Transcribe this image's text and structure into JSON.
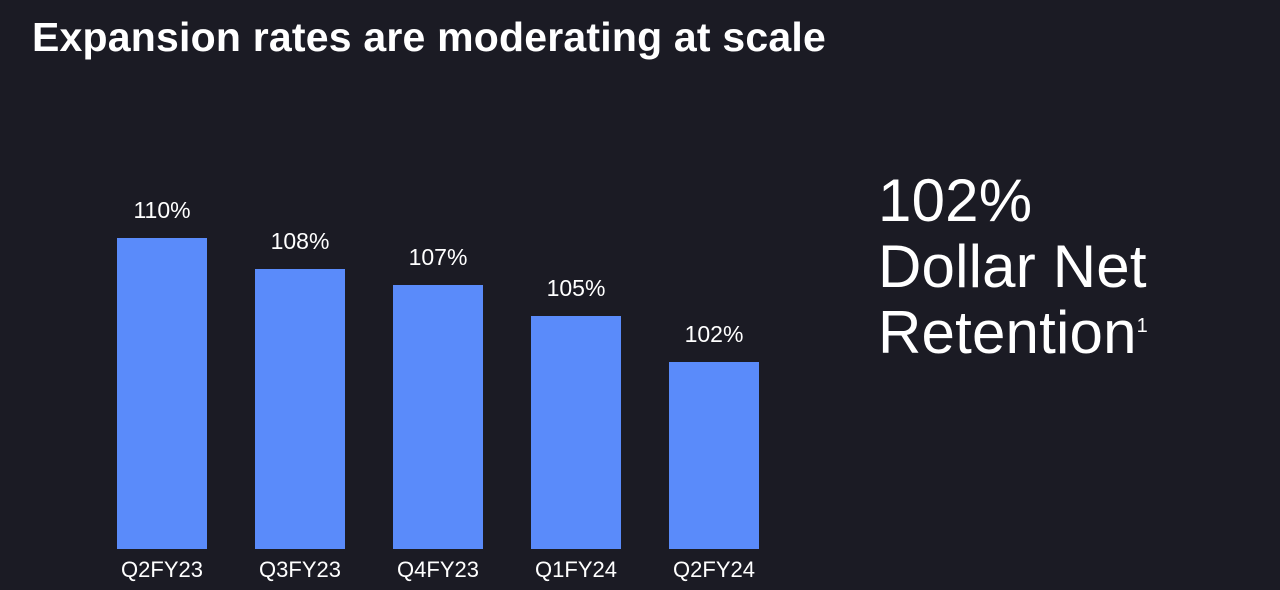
{
  "page": {
    "background": "#1b1b24",
    "title": "Expansion rates are moderating at scale"
  },
  "chart_data": {
    "type": "bar",
    "categories": [
      "Q2FY23",
      "Q3FY23",
      "Q4FY23",
      "Q1FY24",
      "Q2FY24"
    ],
    "values": [
      110,
      108,
      107,
      105,
      102
    ],
    "value_labels": [
      "110%",
      "108%",
      "107%",
      "105%",
      "102%"
    ],
    "title": "",
    "xlabel": "",
    "ylabel": "",
    "ylim": [
      90,
      112
    ],
    "grid": false,
    "legend": false,
    "bar_color": "#5a8bfa",
    "label_color": "#ffffff",
    "background_color": "#1b1b24"
  },
  "callout": {
    "value": "102%",
    "line2": "Dollar Net",
    "line3": "Retention",
    "footnote_marker": "1"
  }
}
